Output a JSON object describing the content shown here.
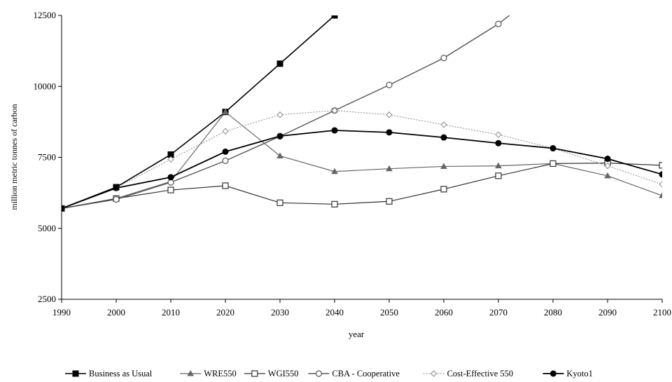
{
  "chart_data": {
    "type": "line",
    "title": "",
    "xlabel": "year",
    "ylabel": "million metric tonnes of carbon",
    "xlim": [
      1990,
      2100
    ],
    "ylim": [
      2500,
      12500
    ],
    "x": [
      1990,
      2000,
      2010,
      2020,
      2030,
      2040,
      2050,
      2060,
      2070,
      2080,
      2090,
      2100
    ],
    "x_ticks": [
      "1990",
      "2000",
      "2010",
      "2020",
      "2030",
      "2040",
      "2050",
      "2060",
      "2070",
      "2080",
      "2090",
      "2100"
    ],
    "y_ticks": [
      "2500",
      "5000",
      "7500",
      "10000",
      "12500"
    ],
    "grid": false,
    "legend_position": "bottom",
    "series": [
      {
        "name": "Business as Usual",
        "marker": "filled-square",
        "color": "#000000",
        "x": [
          1990,
          2000,
          2010,
          2020,
          2030,
          2040,
          2041
        ],
        "values": [
          5700,
          6450,
          7600,
          9100,
          10800,
          12500,
          12650
        ]
      },
      {
        "name": "WRE550",
        "marker": "triangle",
        "color": "#666666",
        "x": [
          1990,
          2000,
          2010,
          2020,
          2030,
          2040,
          2050,
          2060,
          2070,
          2080,
          2090,
          2100
        ],
        "values": [
          5700,
          6050,
          6650,
          9100,
          7550,
          7000,
          7100,
          7180,
          7200,
          7280,
          6850,
          6150
        ]
      },
      {
        "name": "WGI550",
        "marker": "open-square",
        "color": "#333333",
        "x": [
          1990,
          2000,
          2010,
          2020,
          2030,
          2040,
          2050,
          2060,
          2070,
          2080,
          2090,
          2100
        ],
        "values": [
          5700,
          6050,
          6350,
          6500,
          5900,
          5850,
          5950,
          6380,
          6850,
          7280,
          7300,
          7220
        ]
      },
      {
        "name": "CBA - Cooperative",
        "marker": "open-circle",
        "color": "#555555",
        "x": [
          1990,
          2000,
          2010,
          2020,
          2030,
          2040,
          2050,
          2060,
          2070,
          2073
        ],
        "values": [
          5700,
          6020,
          6620,
          7380,
          8240,
          9150,
          10050,
          11000,
          12200,
          12650
        ]
      },
      {
        "name": "Cost-Effective 550",
        "marker": "small-diamond",
        "color": "#8a8a8a",
        "x": [
          1990,
          2000,
          2010,
          2020,
          2030,
          2040,
          2050,
          2060,
          2070,
          2080,
          2090,
          2100
        ],
        "values": [
          5700,
          6430,
          7430,
          8420,
          9000,
          9150,
          9000,
          8650,
          8300,
          7820,
          7200,
          6550
        ]
      },
      {
        "name": "Kyoto1",
        "marker": "filled-circle",
        "color": "#000000",
        "x": [
          1990,
          2000,
          2010,
          2020,
          2030,
          2040,
          2050,
          2060,
          2070,
          2080,
          2090,
          2100
        ],
        "values": [
          5700,
          6420,
          6800,
          7700,
          8250,
          8450,
          8380,
          8200,
          8000,
          7820,
          7450,
          6900
        ]
      }
    ]
  }
}
